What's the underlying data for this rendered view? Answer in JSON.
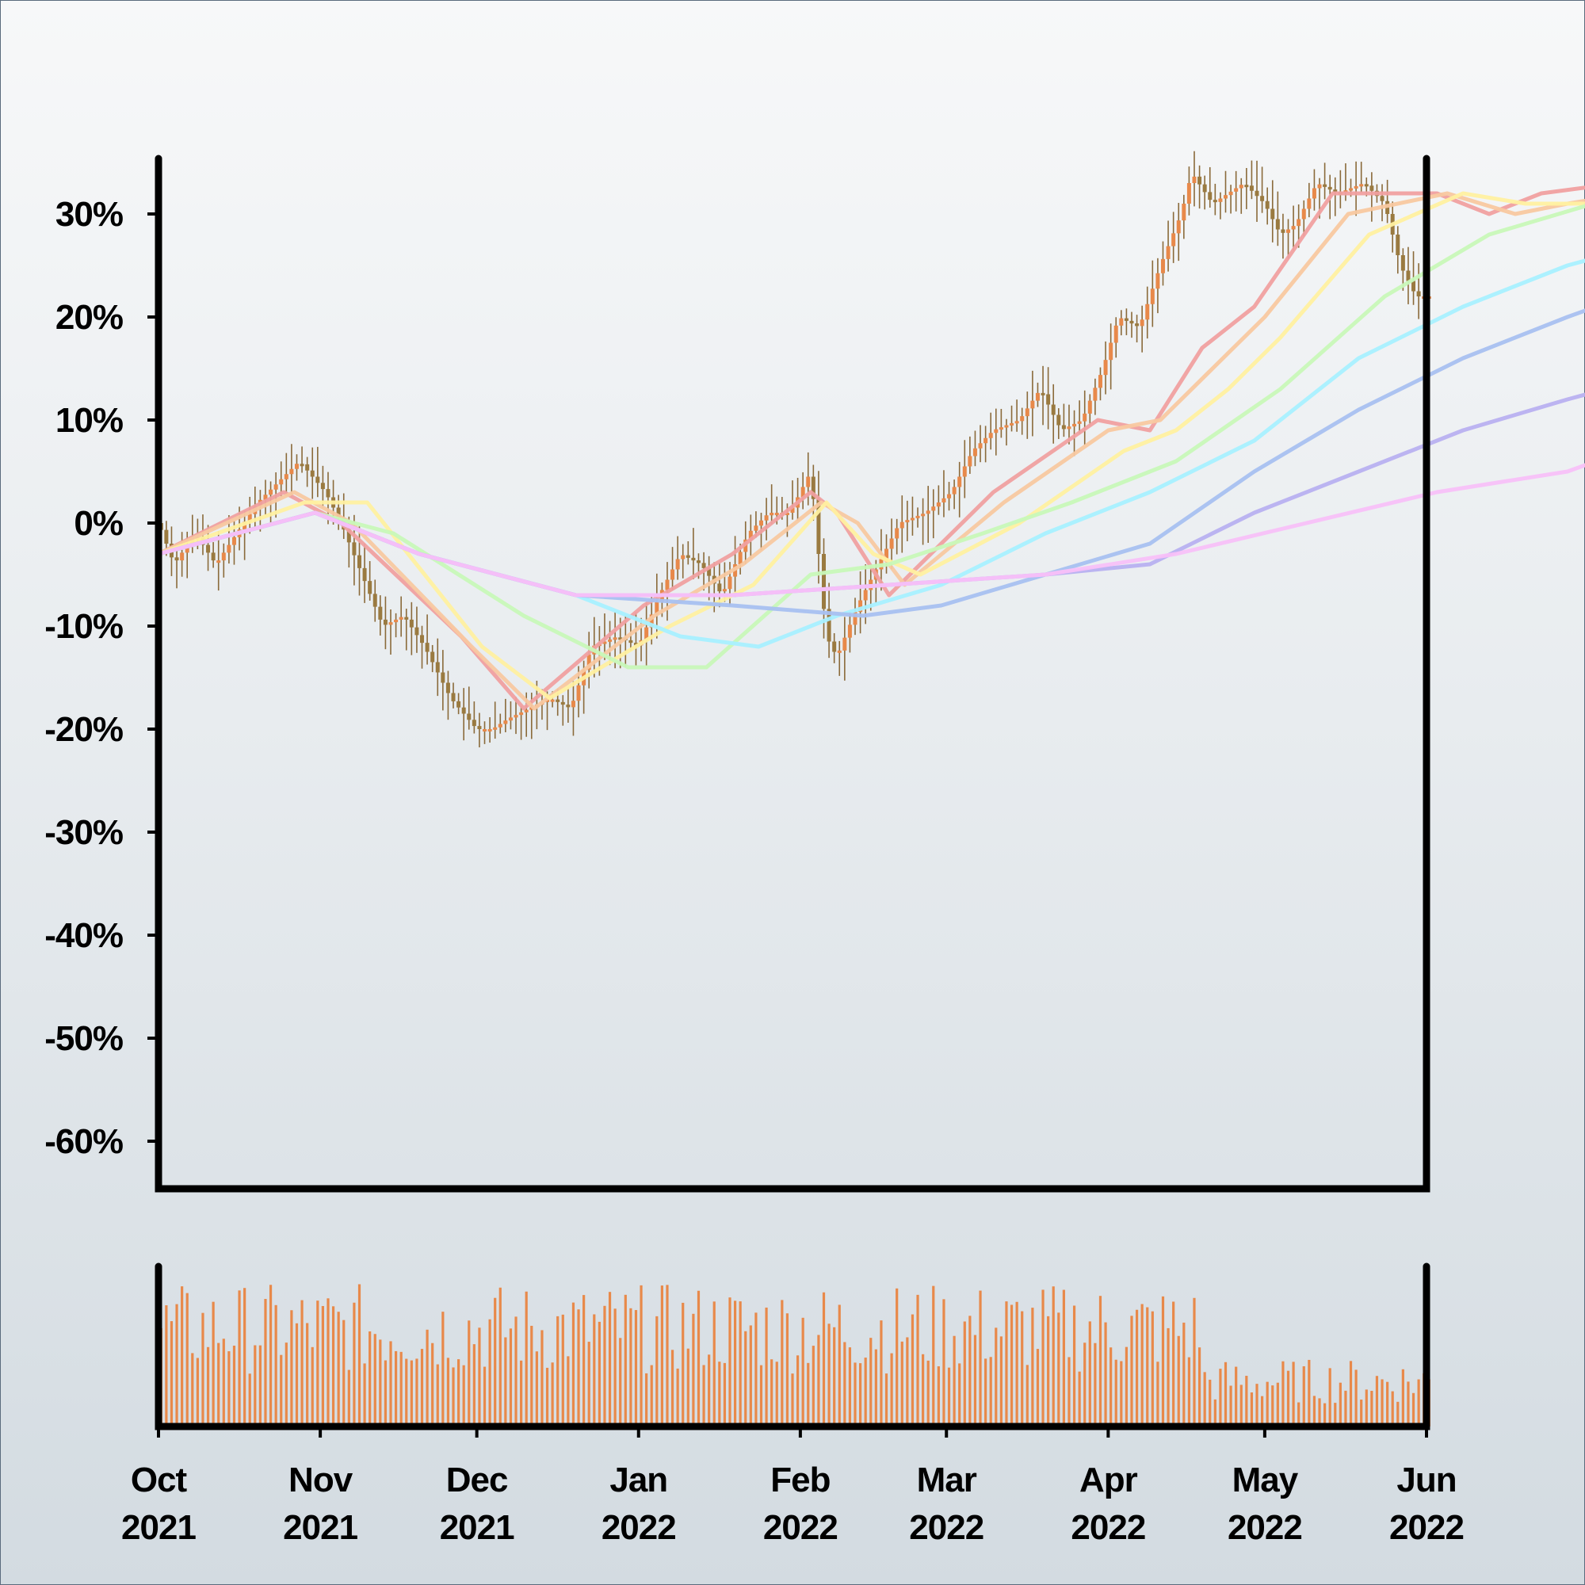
{
  "chart_data": {
    "type": "candlestick",
    "title": "",
    "xlabel": "",
    "ylabel": "",
    "y_unit": "%",
    "ylim": [
      -65,
      35.5
    ],
    "y_ticks": [
      "30%",
      "20%",
      "10%",
      "0%",
      "-10%",
      "-20%",
      "-30%",
      "-40%",
      "-50%",
      "-60%"
    ],
    "y_tick_values": [
      30,
      20,
      10,
      0,
      -10,
      -20,
      -30,
      -40,
      -50,
      -60
    ],
    "x_ticks": [
      {
        "month": "Oct",
        "year": "2021",
        "date": "2021-10-01"
      },
      {
        "month": "Nov",
        "year": "2021",
        "date": "2021-11-01"
      },
      {
        "month": "Dec",
        "year": "2021",
        "date": "2021-12-01"
      },
      {
        "month": "Jan",
        "year": "2022",
        "date": "2022-01-01"
      },
      {
        "month": "Feb",
        "year": "2022",
        "date": "2022-02-01"
      },
      {
        "month": "Mar",
        "year": "2022",
        "date": "2022-03-01"
      },
      {
        "month": "Apr",
        "year": "2022",
        "date": "2022-04-01"
      },
      {
        "month": "May",
        "year": "2022",
        "date": "2022-05-01"
      },
      {
        "month": "Jun",
        "year": "2022",
        "date": "2022-06-01"
      }
    ],
    "xlim": [
      "2021-10-01",
      "2022-06-01"
    ],
    "grid": false,
    "legend": "none",
    "price_key_points": [
      {
        "date": "2021-10-01",
        "close": 0
      },
      {
        "date": "2021-10-04",
        "close": -4
      },
      {
        "date": "2021-10-08",
        "close": -1
      },
      {
        "date": "2021-10-12",
        "close": -4
      },
      {
        "date": "2021-10-16",
        "close": -1
      },
      {
        "date": "2021-10-20",
        "close": 2
      },
      {
        "date": "2021-10-26",
        "close": 5
      },
      {
        "date": "2021-10-28",
        "close": 6
      },
      {
        "date": "2021-11-02",
        "close": 3
      },
      {
        "date": "2021-11-05",
        "close": 0
      },
      {
        "date": "2021-11-09",
        "close": -5
      },
      {
        "date": "2021-11-13",
        "close": -10
      },
      {
        "date": "2021-11-17",
        "close": -9
      },
      {
        "date": "2021-11-21",
        "close": -12
      },
      {
        "date": "2021-11-26",
        "close": -17
      },
      {
        "date": "2021-12-01",
        "close": -20
      },
      {
        "date": "2021-12-04",
        "close": -20
      },
      {
        "date": "2021-12-07",
        "close": -19
      },
      {
        "date": "2021-12-11",
        "close": -18
      },
      {
        "date": "2021-12-15",
        "close": -17
      },
      {
        "date": "2021-12-19",
        "close": -18
      },
      {
        "date": "2021-12-23",
        "close": -12
      },
      {
        "date": "2021-12-28",
        "close": -11
      },
      {
        "date": "2022-01-01",
        "close": -12
      },
      {
        "date": "2022-01-05",
        "close": -7
      },
      {
        "date": "2022-01-09",
        "close": -3
      },
      {
        "date": "2022-01-13",
        "close": -4
      },
      {
        "date": "2022-01-17",
        "close": -7
      },
      {
        "date": "2022-01-22",
        "close": -1
      },
      {
        "date": "2022-01-26",
        "close": 1
      },
      {
        "date": "2022-01-30",
        "close": 1
      },
      {
        "date": "2022-02-03",
        "close": 5
      },
      {
        "date": "2022-02-06",
        "close": -11
      },
      {
        "date": "2022-02-08",
        "close": -13
      },
      {
        "date": "2022-02-12",
        "close": -8
      },
      {
        "date": "2022-02-16",
        "close": -4
      },
      {
        "date": "2022-02-20",
        "close": 0
      },
      {
        "date": "2022-02-25",
        "close": 1
      },
      {
        "date": "2022-03-02",
        "close": 3
      },
      {
        "date": "2022-03-06",
        "close": 7
      },
      {
        "date": "2022-03-10",
        "close": 9
      },
      {
        "date": "2022-03-15",
        "close": 10
      },
      {
        "date": "2022-03-19",
        "close": 13
      },
      {
        "date": "2022-03-23",
        "close": 9
      },
      {
        "date": "2022-03-27",
        "close": 10
      },
      {
        "date": "2022-03-31",
        "close": 15
      },
      {
        "date": "2022-04-03",
        "close": 20
      },
      {
        "date": "2022-04-07",
        "close": 19
      },
      {
        "date": "2022-04-11",
        "close": 25
      },
      {
        "date": "2022-04-15",
        "close": 30
      },
      {
        "date": "2022-04-17",
        "close": 34
      },
      {
        "date": "2022-04-21",
        "close": 31
      },
      {
        "date": "2022-04-27",
        "close": 33
      },
      {
        "date": "2022-05-01",
        "close": 31
      },
      {
        "date": "2022-05-04",
        "close": 28
      },
      {
        "date": "2022-05-07",
        "close": 29
      },
      {
        "date": "2022-05-11",
        "close": 33
      },
      {
        "date": "2022-05-15",
        "close": 32
      },
      {
        "date": "2022-05-20",
        "close": 33
      },
      {
        "date": "2022-05-24",
        "close": 31
      },
      {
        "date": "2022-05-27",
        "close": 25
      },
      {
        "date": "2022-05-30",
        "close": 22
      },
      {
        "date": "2022-06-01",
        "close": 22
      }
    ],
    "moving_averages": [
      {
        "color": "#f0a0a0",
        "points": [
          [
            0,
            -3
          ],
          [
            24,
            3
          ],
          [
            35,
            0
          ],
          [
            58,
            -11
          ],
          [
            70,
            -18
          ],
          [
            93,
            -8
          ],
          [
            110,
            -3
          ],
          [
            125,
            3
          ],
          [
            130,
            1
          ],
          [
            140,
            -7
          ],
          [
            160,
            3
          ],
          [
            180,
            10
          ],
          [
            190,
            9
          ],
          [
            200,
            17
          ],
          [
            210,
            21
          ],
          [
            225,
            32
          ],
          [
            245,
            32
          ],
          [
            255,
            30
          ],
          [
            265,
            32
          ],
          [
            280,
            33
          ],
          [
            290,
            26
          ],
          [
            292,
            26
          ]
        ]
      },
      {
        "color": "#f8c8a0",
        "points": [
          [
            0,
            -3
          ],
          [
            26,
            3
          ],
          [
            37,
            0
          ],
          [
            60,
            -12
          ],
          [
            72,
            -18
          ],
          [
            95,
            -9
          ],
          [
            112,
            -4
          ],
          [
            127,
            2
          ],
          [
            134,
            0
          ],
          [
            143,
            -6
          ],
          [
            162,
            2
          ],
          [
            182,
            9
          ],
          [
            192,
            10
          ],
          [
            202,
            15
          ],
          [
            212,
            20
          ],
          [
            228,
            30
          ],
          [
            247,
            32
          ],
          [
            260,
            30
          ],
          [
            270,
            31
          ],
          [
            282,
            32
          ],
          [
            292,
            28
          ]
        ]
      },
      {
        "color": "#fff0a0",
        "points": [
          [
            0,
            -3
          ],
          [
            28,
            2
          ],
          [
            40,
            2
          ],
          [
            62,
            -12
          ],
          [
            75,
            -17
          ],
          [
            98,
            -10
          ],
          [
            114,
            -6
          ],
          [
            128,
            2
          ],
          [
            137,
            -3
          ],
          [
            146,
            -5
          ],
          [
            165,
            0
          ],
          [
            185,
            7
          ],
          [
            195,
            9
          ],
          [
            205,
            13
          ],
          [
            215,
            18
          ],
          [
            232,
            28
          ],
          [
            250,
            32
          ],
          [
            262,
            31
          ],
          [
            275,
            31
          ],
          [
            285,
            32
          ],
          [
            292,
            30
          ]
        ]
      },
      {
        "color": "#c8f8b8",
        "points": [
          [
            0,
            -3
          ],
          [
            30,
            1
          ],
          [
            45,
            -1
          ],
          [
            70,
            -9
          ],
          [
            90,
            -14
          ],
          [
            105,
            -14
          ],
          [
            125,
            -5
          ],
          [
            140,
            -4
          ],
          [
            158,
            -1
          ],
          [
            175,
            2
          ],
          [
            195,
            6
          ],
          [
            215,
            13
          ],
          [
            235,
            22
          ],
          [
            255,
            28
          ],
          [
            275,
            31
          ],
          [
            292,
            30
          ]
        ]
      },
      {
        "color": "#a8f0ff",
        "points": [
          [
            0,
            -3
          ],
          [
            30,
            1
          ],
          [
            50,
            -3
          ],
          [
            80,
            -7
          ],
          [
            100,
            -11
          ],
          [
            115,
            -12
          ],
          [
            130,
            -9
          ],
          [
            150,
            -6
          ],
          [
            170,
            -1
          ],
          [
            190,
            3
          ],
          [
            210,
            8
          ],
          [
            230,
            16
          ],
          [
            250,
            21
          ],
          [
            270,
            25
          ],
          [
            292,
            28
          ]
        ]
      },
      {
        "color": "#a8c0f0",
        "points": [
          [
            0,
            -3
          ],
          [
            30,
            1
          ],
          [
            50,
            -3
          ],
          [
            80,
            -7
          ],
          [
            110,
            -8
          ],
          [
            135,
            -9
          ],
          [
            150,
            -8
          ],
          [
            170,
            -5
          ],
          [
            190,
            -2
          ],
          [
            210,
            5
          ],
          [
            230,
            11
          ],
          [
            250,
            16
          ],
          [
            270,
            20
          ],
          [
            292,
            24
          ]
        ]
      },
      {
        "color": "#b8b0f0",
        "points": [
          [
            0,
            -3
          ],
          [
            30,
            1
          ],
          [
            50,
            -3
          ],
          [
            80,
            -7
          ],
          [
            110,
            -7
          ],
          [
            140,
            -6
          ],
          [
            170,
            -5
          ],
          [
            190,
            -4
          ],
          [
            210,
            1
          ],
          [
            230,
            5
          ],
          [
            250,
            9
          ],
          [
            270,
            12
          ],
          [
            292,
            15
          ]
        ]
      },
      {
        "color": "#f8c0f8",
        "points": [
          [
            0,
            -3
          ],
          [
            30,
            1
          ],
          [
            50,
            -3
          ],
          [
            80,
            -7
          ],
          [
            110,
            -7
          ],
          [
            140,
            -6
          ],
          [
            170,
            -5
          ],
          [
            195,
            -3
          ],
          [
            220,
            0
          ],
          [
            245,
            3
          ],
          [
            270,
            5
          ],
          [
            292,
            9
          ]
        ]
      }
    ],
    "volume": {
      "color": "#e8894a",
      "relative_max": 1
    }
  }
}
